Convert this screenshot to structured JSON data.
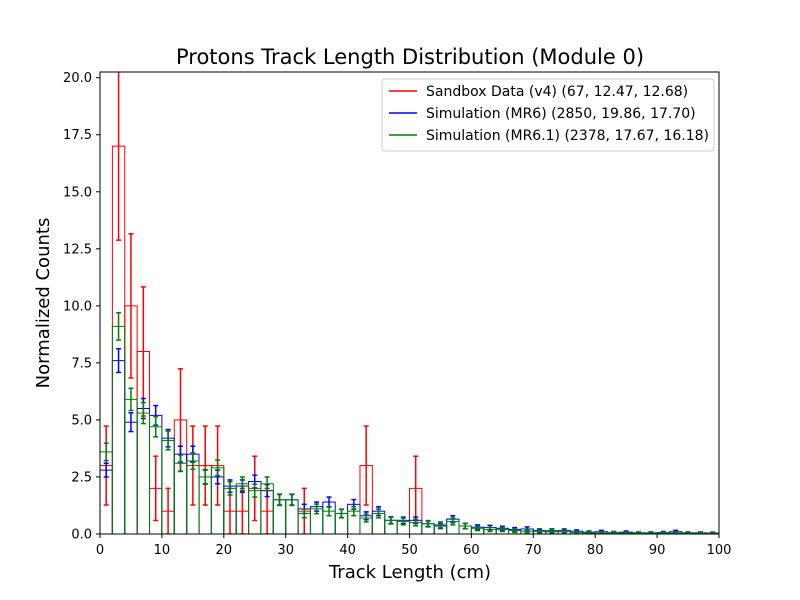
{
  "chart_data": {
    "type": "histogram",
    "title": "Protons Track Length Distribution (Module 0)",
    "xlabel": "Track Length (cm)",
    "ylabel": "Normalized Counts",
    "xlim": [
      0,
      100
    ],
    "ylim": [
      0,
      20.25
    ],
    "xticks": [
      0,
      10,
      20,
      30,
      40,
      50,
      60,
      70,
      80,
      90,
      100
    ],
    "yticks": [
      0.0,
      2.5,
      5.0,
      7.5,
      10.0,
      12.5,
      15.0,
      17.5,
      20.0
    ],
    "xtick_labels": [
      "0",
      "10",
      "20",
      "30",
      "40",
      "50",
      "60",
      "70",
      "80",
      "90",
      "100"
    ],
    "ytick_labels": [
      "0.0",
      "2.5",
      "5.0",
      "7.5",
      "10.0",
      "12.5",
      "15.0",
      "17.5",
      "20.0"
    ],
    "grid": false,
    "legend_position": "top-right",
    "bin_edges": [
      0,
      2,
      4,
      6,
      8,
      10,
      12,
      14,
      16,
      18,
      20,
      22,
      24,
      26,
      28,
      30,
      32,
      34,
      36,
      38,
      40,
      42,
      44,
      46,
      48,
      50,
      52,
      54,
      56,
      58,
      60,
      62,
      64,
      66,
      68,
      70,
      72,
      74,
      76,
      78,
      80,
      82,
      84,
      86,
      88,
      90,
      92,
      94,
      96,
      98,
      100
    ],
    "series": [
      {
        "name": "Sandbox Data (v4) (67, 12.47, 12.68)",
        "color": "#ff0000",
        "values": [
          3.0,
          17.0,
          10.0,
          8.0,
          2.0,
          1.0,
          5.0,
          3.0,
          3.0,
          3.0,
          1.0,
          1.0,
          2.0,
          1.0,
          0,
          0,
          1.0,
          0,
          0,
          0,
          0,
          3.0,
          0,
          0,
          0,
          2.0,
          0,
          0,
          0,
          0,
          0,
          0,
          0,
          0,
          0,
          0,
          0,
          0,
          0,
          0,
          0,
          0,
          0,
          0,
          0,
          0,
          0,
          0,
          0,
          0
        ],
        "errors": [
          1.73,
          4.12,
          3.16,
          2.83,
          1.41,
          1.0,
          2.24,
          1.73,
          1.73,
          1.73,
          1.0,
          1.0,
          1.41,
          1.0,
          0,
          0,
          1.0,
          0,
          0,
          0,
          0,
          1.73,
          0,
          0,
          0,
          1.41,
          0,
          0,
          0,
          0,
          0,
          0,
          0,
          0,
          0,
          0,
          0,
          0,
          0,
          0,
          0,
          0,
          0,
          0,
          0,
          0,
          0,
          0,
          0,
          0
        ]
      },
      {
        "name": "Simulation (MR6) (2850, 19.86, 17.70)",
        "color": "#0000ff",
        "values": [
          2.8,
          7.6,
          4.9,
          5.5,
          5.2,
          4.2,
          3.5,
          3.5,
          2.5,
          2.5,
          2.1,
          2.1,
          2.3,
          1.9,
          1.5,
          1.5,
          1.1,
          1.2,
          1.4,
          0.9,
          1.3,
          0.8,
          1.0,
          0.6,
          0.6,
          0.6,
          0.45,
          0.35,
          0.65,
          0.35,
          0.3,
          0.28,
          0.25,
          0.2,
          0.22,
          0.15,
          0.1,
          0.15,
          0.12,
          0.08,
          0.1,
          0.06,
          0.08,
          0.05,
          0.05,
          0.06,
          0.1,
          0.05,
          0.05,
          0.04
        ],
        "errors": [
          0.3,
          0.52,
          0.41,
          0.44,
          0.43,
          0.38,
          0.35,
          0.35,
          0.3,
          0.3,
          0.27,
          0.27,
          0.28,
          0.26,
          0.23,
          0.23,
          0.2,
          0.2,
          0.22,
          0.18,
          0.21,
          0.17,
          0.19,
          0.14,
          0.14,
          0.14,
          0.12,
          0.11,
          0.15,
          0.11,
          0.1,
          0.1,
          0.09,
          0.08,
          0.09,
          0.07,
          0.06,
          0.07,
          0.06,
          0.05,
          0.06,
          0.05,
          0.05,
          0.04,
          0.04,
          0.05,
          0.06,
          0.04,
          0.04,
          0.04
        ]
      },
      {
        "name": "Simulation (MR6.1) (2378, 17.67, 16.18)",
        "color": "#008000",
        "values": [
          3.6,
          9.1,
          5.9,
          5.3,
          4.7,
          4.1,
          3.1,
          3.2,
          2.5,
          2.9,
          2.0,
          2.2,
          1.9,
          2.2,
          1.5,
          1.5,
          0.9,
          1.1,
          1.0,
          0.9,
          1.0,
          0.7,
          0.9,
          0.6,
          0.55,
          0.5,
          0.45,
          0.4,
          0.55,
          0.35,
          0.25,
          0.2,
          0.2,
          0.15,
          0.12,
          0.1,
          0.15,
          0.1,
          0.06,
          0.05,
          0.04,
          0.05,
          0.04,
          0.03,
          0.03,
          0.04,
          0.04,
          0.03,
          0.03,
          0.02
        ],
        "errors": [
          0.38,
          0.6,
          0.49,
          0.46,
          0.44,
          0.41,
          0.36,
          0.36,
          0.32,
          0.34,
          0.29,
          0.3,
          0.28,
          0.3,
          0.25,
          0.25,
          0.19,
          0.21,
          0.2,
          0.19,
          0.2,
          0.17,
          0.19,
          0.16,
          0.15,
          0.14,
          0.14,
          0.13,
          0.15,
          0.12,
          0.1,
          0.09,
          0.09,
          0.08,
          0.07,
          0.06,
          0.08,
          0.06,
          0.05,
          0.05,
          0.04,
          0.05,
          0.04,
          0.04,
          0.04,
          0.04,
          0.04,
          0.04,
          0.04,
          0.03
        ]
      }
    ]
  }
}
